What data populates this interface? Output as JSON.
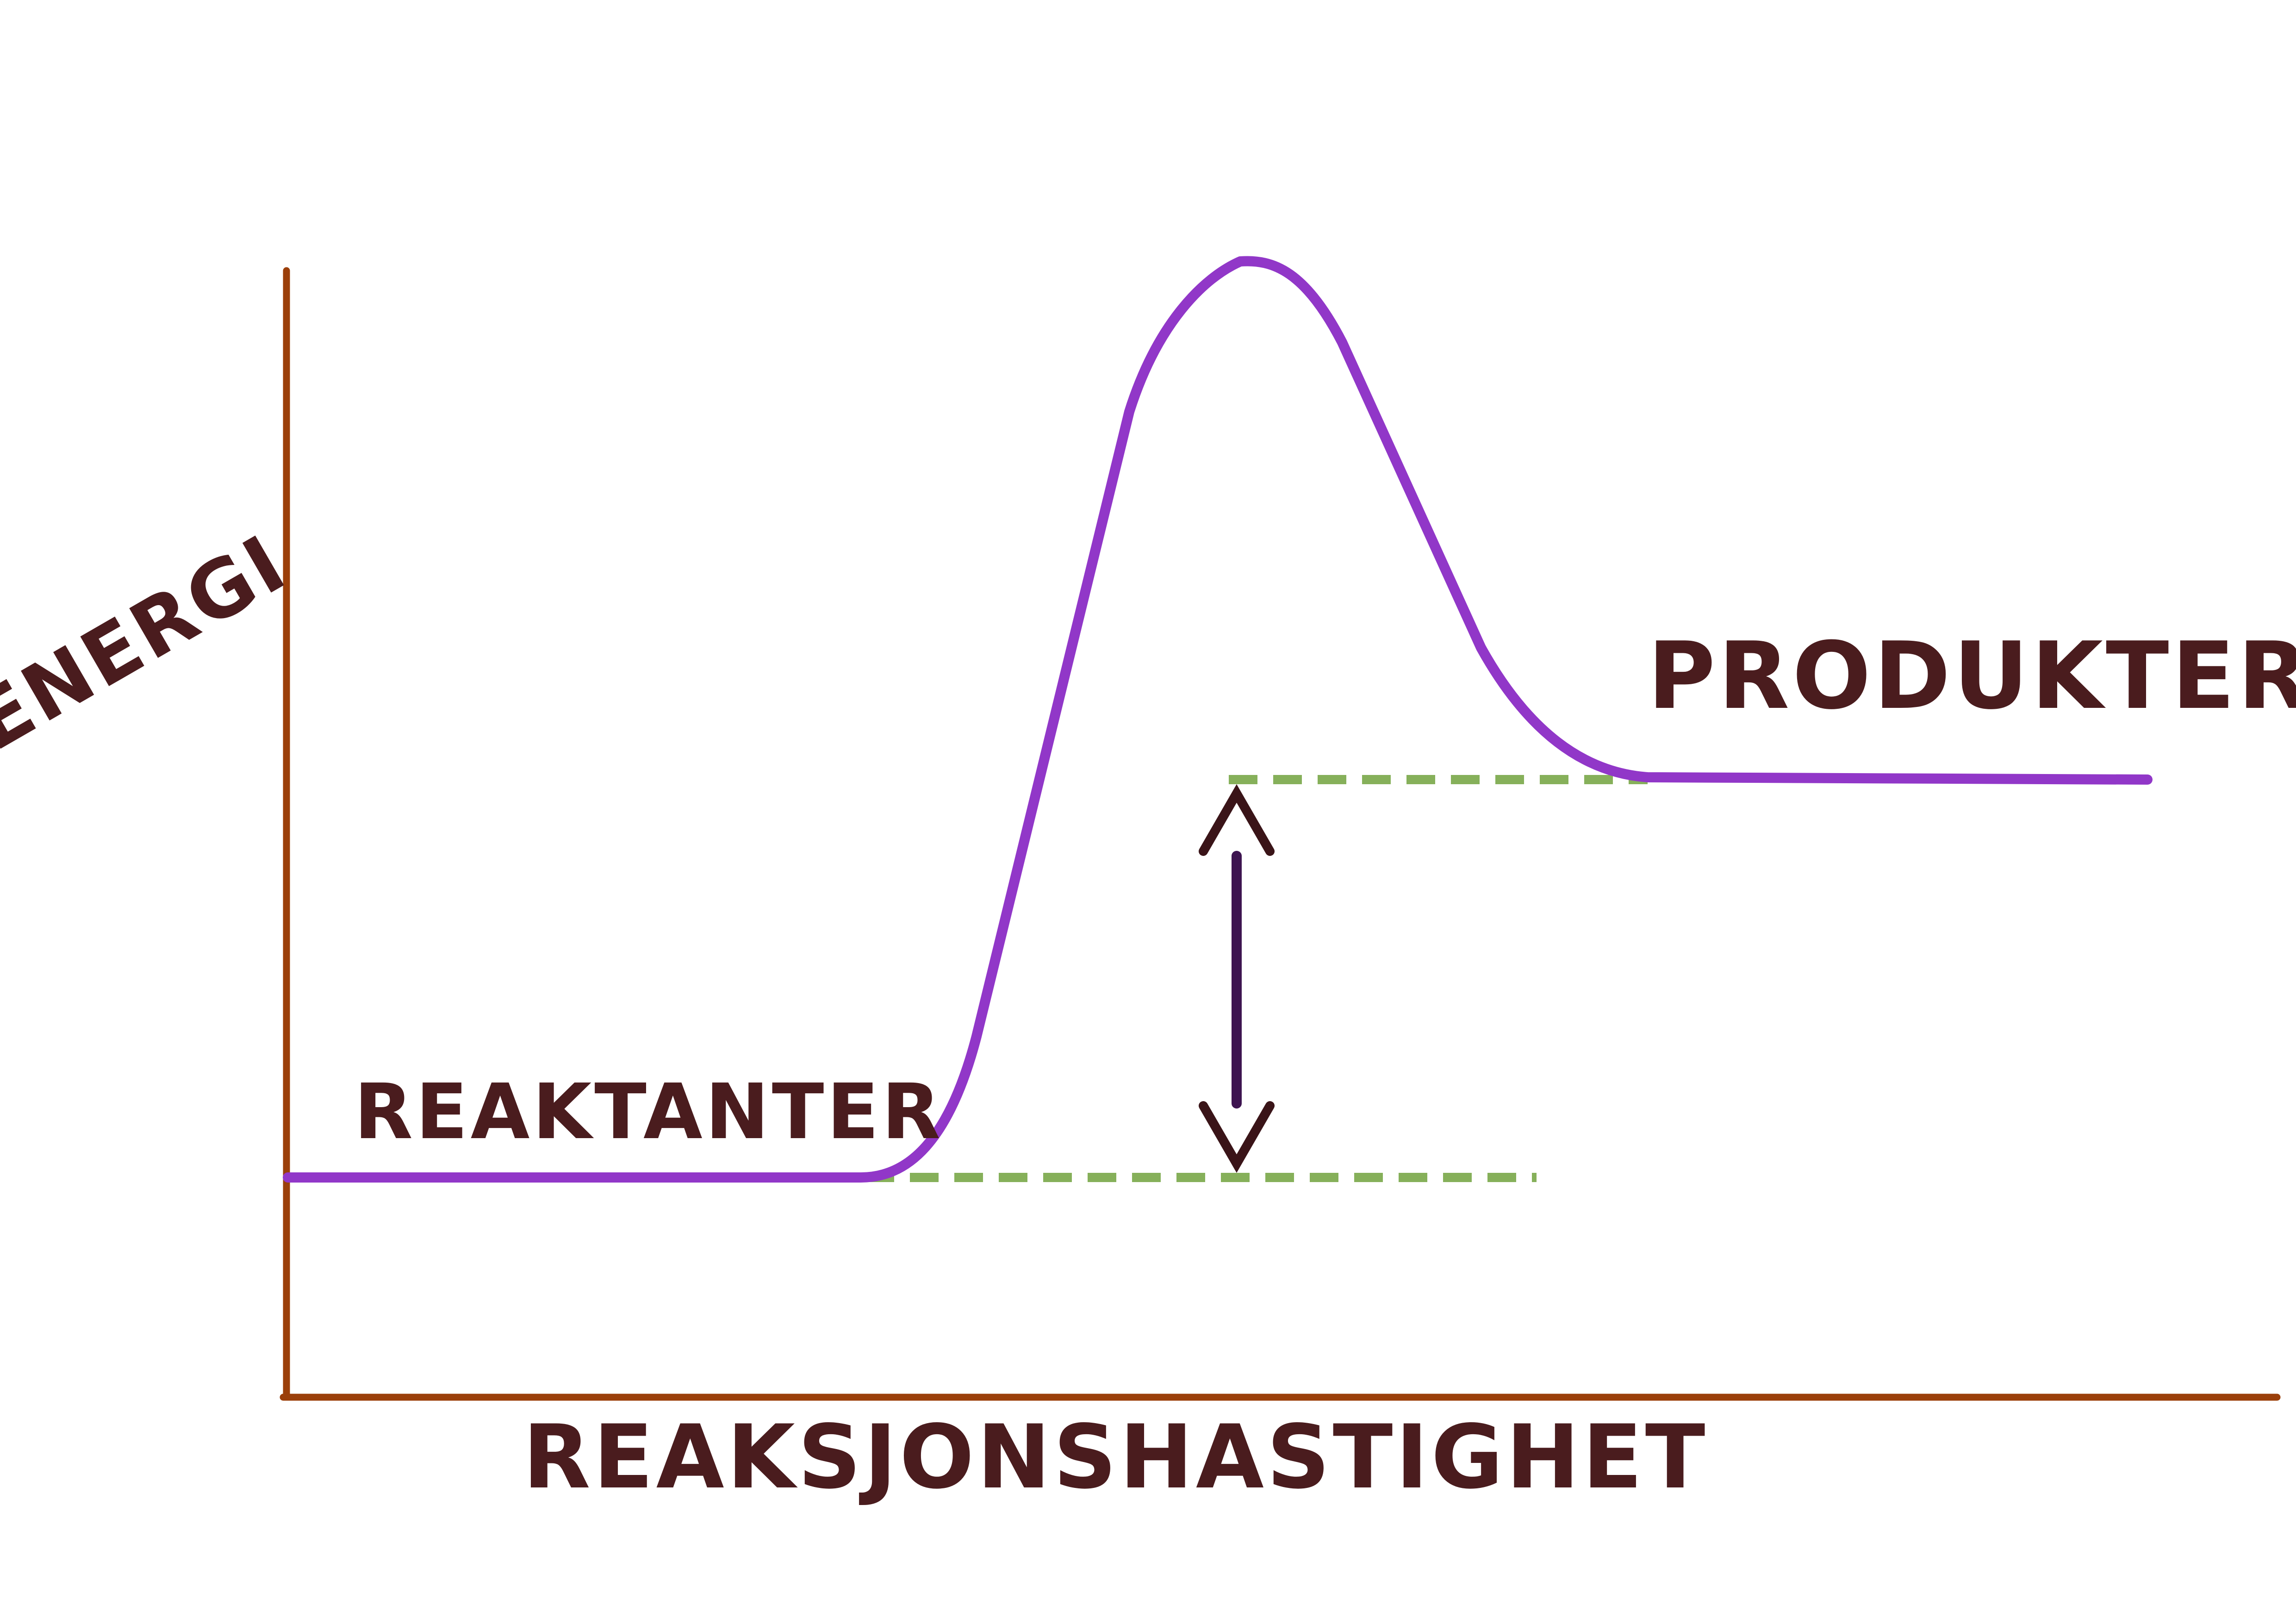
{
  "diagram": {
    "y_axis_label": "ENERGI",
    "x_axis_label": "REAKSJONSHASTIGHET",
    "reactants_label": "REAKTANTER",
    "products_label": "PRODUKTER"
  },
  "colors": {
    "axis": "#9b3f0a",
    "curve": "#9137c8",
    "dashed_level": "#86b05a",
    "arrow_head": "#3a1418",
    "arrow_shaft": "#3d1450",
    "label_text": "#4a1c1e",
    "background": "#ffffff"
  }
}
